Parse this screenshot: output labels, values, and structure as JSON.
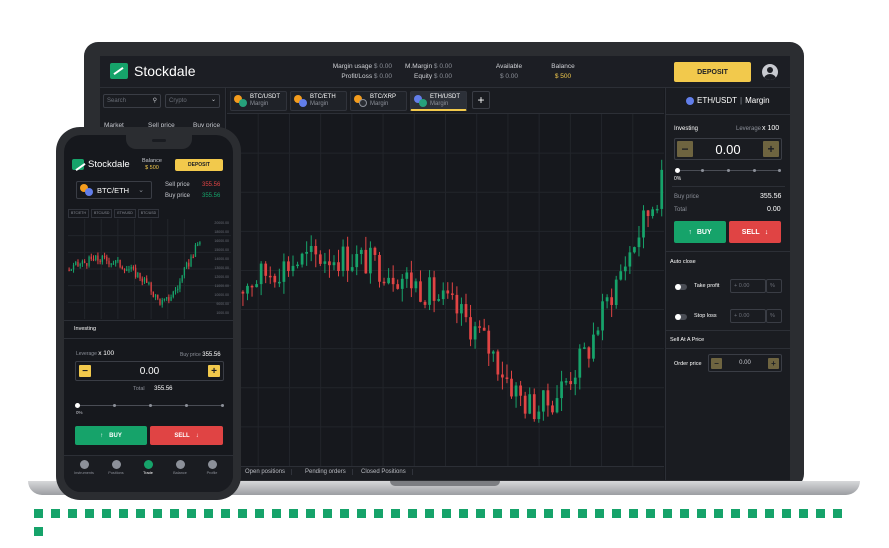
{
  "brand": {
    "name": "Stockdale"
  },
  "header": {
    "margin_usage_label": "Margin usage",
    "margin_usage_value": "$ 0.00",
    "profit_loss_label": "Profit/Loss",
    "profit_loss_value": "$ 0.00",
    "m_margin_label": "M.Margin",
    "m_margin_value": "$ 0.00",
    "equity_label": "Equity",
    "equity_value": "$ 0.00",
    "available_label": "Available",
    "available_value": "$ 0.00",
    "balance_label": "Balance",
    "balance_value": "$ 500",
    "deposit_label": "DEPOSIT"
  },
  "left_panel": {
    "search_placeholder": "Search",
    "crypto_placeholder": "Crypto",
    "columns": [
      "Market",
      "Sell price",
      "Buy price"
    ]
  },
  "tabs": [
    {
      "pair": "BTC/USDT",
      "type": "Margin"
    },
    {
      "pair": "BTC/ETH",
      "type": "Margin"
    },
    {
      "pair": "BTC/XRP",
      "type": "Margin"
    },
    {
      "pair": "ETH/USDT",
      "type": "Margin"
    }
  ],
  "add_tab_label": "+",
  "bottom_tabs": [
    "Open positions",
    "Pending orders",
    "Closed Positions"
  ],
  "trade_panel": {
    "title_pair": "ETH/USDT",
    "title_type": "Margin",
    "investing_label": "Investing",
    "leverage_label": "Leverage",
    "leverage_value": "x 100",
    "amount": "0.00",
    "minus": "−",
    "plus": "+",
    "slider_pct": "0%",
    "buy_price_label": "Buy price",
    "buy_price_value": "355.56",
    "total_label": "Total",
    "total_value": "0.00",
    "buy_label": "BUY",
    "sell_label": "SELL",
    "auto_close_label": "Auto close",
    "take_profit_label": "Take profit",
    "stop_loss_label": "Stop loss",
    "tp_value": "+ 0.00",
    "sl_value": "+ 0.00",
    "pct_suffix": "%",
    "sell_at_price_label": "Sell At A Price",
    "order_price_label": "Order price",
    "order_price_value": "0.00"
  },
  "phone": {
    "brand": "Stockdale",
    "balance_label": "Balance",
    "balance_value": "$ 500",
    "deposit_label": "DEPOSIT",
    "pair": "BTC/ETH",
    "sell_price_label": "Sell price",
    "sell_price_value": "355.56",
    "buy_price_label": "Buy price",
    "buy_price_value": "355.56",
    "mini_tabs": [
      "BTC/ETH",
      "BTC/USD",
      "ETH/USD",
      "BTC/USD"
    ],
    "price_scale": [
      "20000.00",
      "18000.00",
      "16000.00",
      "15000.00",
      "14000.00",
      "13000.00",
      "12000.00",
      "11000.00",
      "10000.00",
      "9000.00",
      "1000.00"
    ],
    "investing_label": "Investing",
    "leverage_label": "Leverage",
    "leverage_value": "x 100",
    "buy_price_label2": "Buy price",
    "buy_price_value2": "355.56",
    "amount": "0.00",
    "minus": "−",
    "plus": "+",
    "total_label": "Total",
    "total_value": "355.56",
    "slider_pct": "0%",
    "buy_label": "BUY",
    "sell_label": "SELL",
    "nav": [
      "Instruments",
      "Positions",
      "Trade",
      "Balance",
      "Profile"
    ]
  },
  "colors": {
    "green": "#16a36a",
    "red": "#e04444",
    "yellow": "#f2c94c",
    "bg": "#16181d"
  }
}
